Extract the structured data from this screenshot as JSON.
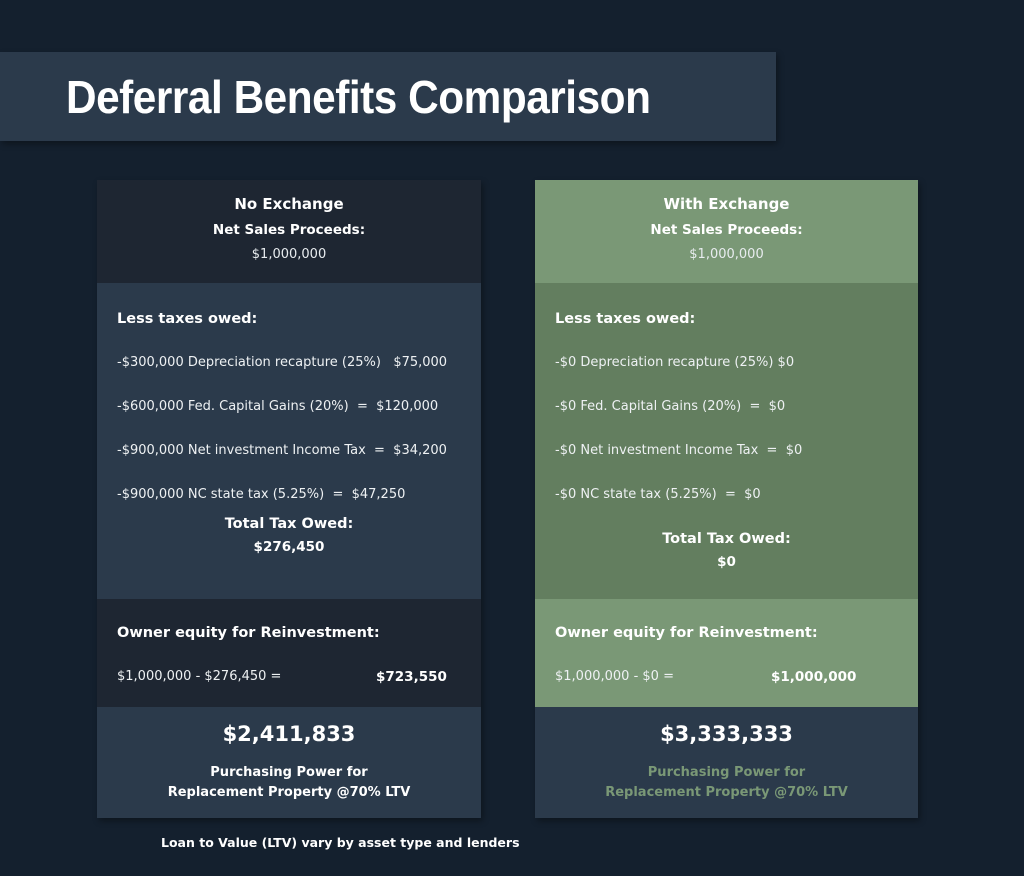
{
  "title": "Deferral Benefits Comparison",
  "colors": {
    "background": "#14202e",
    "title_bar": "#2b3a4b",
    "dark_section": "#1e2632",
    "slate_section": "#2b3a4b",
    "green_light": "#7a9876",
    "green_dark": "#637e5f"
  },
  "columns": {
    "no_exchange": {
      "scenario": "No Exchange",
      "net_sales_label": "Net Sales Proceeds:",
      "net_sales_value": "$1,000,000",
      "taxes_label": "Less taxes owed:",
      "tax_lines": [
        "-$300,000 Depreciation recapture (25%)   $75,000",
        "-$600,000 Fed. Capital Gains (20%)  =  $120,000",
        "-$900,000 Net investment Income Tax  =  $34,200",
        "-$900,000 NC state tax (5.25%)  =  $47,250"
      ],
      "total_label": "Total Tax Owed:",
      "total_value": "$276,450",
      "equity_label": "Owner equity for Reinvestment:",
      "equity_calc": "$1,000,000 - $276,450 =",
      "equity_result": "$723,550",
      "purchasing_value": "$2,411,833",
      "purchasing_label_1": "Purchasing Power for",
      "purchasing_label_2": "Replacement Property @70% LTV"
    },
    "with_exchange": {
      "scenario": "With Exchange",
      "net_sales_label": "Net Sales Proceeds:",
      "net_sales_value": "$1,000,000",
      "taxes_label": "Less taxes owed:",
      "tax_lines": [
        "-$0 Depreciation recapture (25%) $0",
        "-$0 Fed. Capital Gains (20%)  =  $0",
        "-$0 Net investment Income Tax  =  $0",
        "-$0 NC state tax (5.25%)  =  $0"
      ],
      "total_label": "Total Tax Owed:",
      "total_value": "$0",
      "equity_label": "Owner equity for Reinvestment:",
      "equity_calc": "$1,000,000 - $0 =",
      "equity_result": "$1,000,000",
      "purchasing_value": "$3,333,333",
      "purchasing_label_1": "Purchasing Power for",
      "purchasing_label_2": "Replacement Property @70% LTV"
    }
  },
  "footnote": "Loan to Value (LTV) vary by asset type and lenders"
}
